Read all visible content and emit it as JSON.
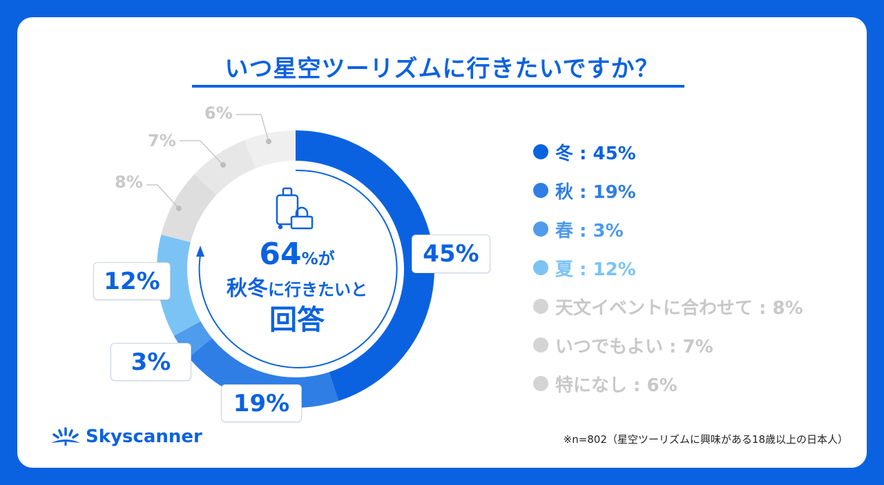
{
  "title": "いつ星空ツーリズムに行きたいですか？",
  "center": {
    "pct": "64",
    "pct_suffix": "%が",
    "line2_big": "秋冬",
    "line2_small": "に行きたいと",
    "line3": "回答"
  },
  "slice_labels": {
    "winter": "45%",
    "autumn": "19%",
    "spring": "3%",
    "summer": "12%",
    "event": "8%",
    "anytime": "7%",
    "none": "6%"
  },
  "legend": [
    {
      "label": "冬 : 45%",
      "color": "#0b62e0"
    },
    {
      "label": "秋 : 19%",
      "color": "#2f7ee6"
    },
    {
      "label": "春 : 3%",
      "color": "#4f9bec"
    },
    {
      "label": "夏 : 12%",
      "color": "#7cc3f5"
    },
    {
      "label": "天文イベントに合わせて : 8%",
      "color": "#d4d4d4"
    },
    {
      "label": "いつでもよい : 7%",
      "color": "#d4d4d4"
    },
    {
      "label": "特になし : 6%",
      "color": "#d4d4d4"
    }
  ],
  "brand": "Skyscanner",
  "note": "※n=802（星空ツーリズムに興味がある18歳以上の日本人）",
  "chart_data": {
    "type": "pie",
    "title": "いつ星空ツーリズムに行きたいですか？",
    "categories": [
      "冬",
      "秋",
      "春",
      "夏",
      "天文イベントに合わせて",
      "いつでもよい",
      "特になし"
    ],
    "values": [
      45,
      19,
      3,
      12,
      8,
      7,
      6
    ],
    "unit": "%",
    "colors": [
      "#0b62e0",
      "#2f7ee6",
      "#4f9bec",
      "#7cc3f5",
      "#dedede",
      "#e7e7e7",
      "#efefef"
    ],
    "donut": true,
    "legend_position": "right",
    "n": 802
  }
}
